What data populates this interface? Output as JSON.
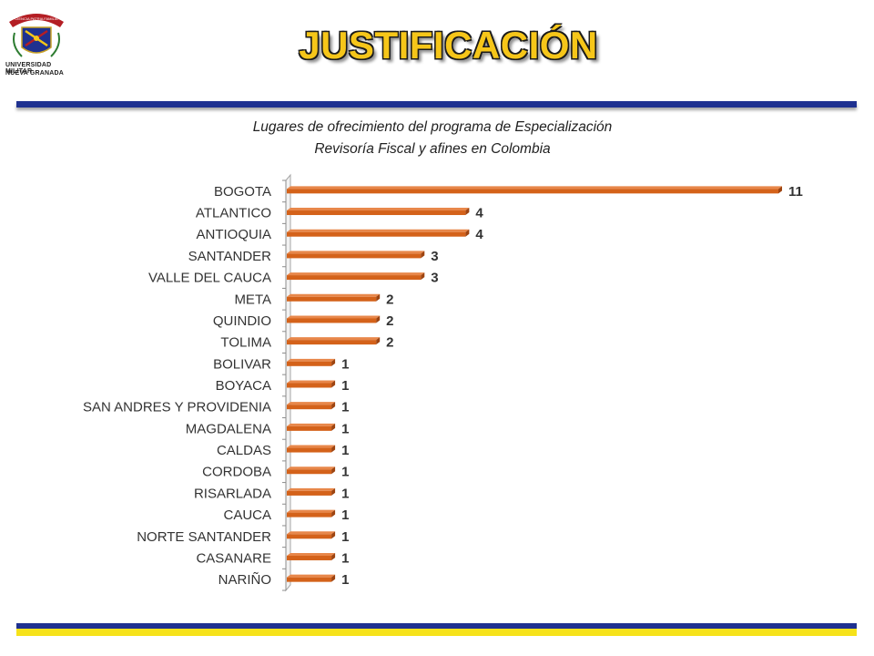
{
  "header": {
    "title": "JUSTIFICACIÓN",
    "logo_line1": "UNIVERSIDAD MILITAR",
    "logo_line2": "NUEVA GRANADA",
    "logo_banner": "CIENCIA PATRIA FAMILIA"
  },
  "colors": {
    "title_fill": "#f6c619",
    "rule_blue": "#1f3190",
    "rule_yellow": "#f6e21a",
    "bar_fill": "#d4621a"
  },
  "chart_data": {
    "type": "bar",
    "orientation": "horizontal",
    "title": "Lugares de ofrecimiento del programa de Especialización",
    "subtitle": "Revisoría Fiscal y afines en Colombia",
    "categories": [
      "BOGOTA",
      "ATLANTICO",
      "ANTIOQUIA",
      "SANTANDER",
      "VALLE DEL CAUCA",
      "META",
      "QUINDIO",
      "TOLIMA",
      "BOLIVAR",
      "BOYACA",
      "SAN ANDRES Y PROVIDENIA",
      "MAGDALENA",
      "CALDAS",
      "CORDOBA",
      "RISARLADA",
      "CAUCA",
      "NORTE SANTANDER",
      "CASANARE",
      "NARIÑO"
    ],
    "values": [
      11,
      4,
      4,
      3,
      3,
      2,
      2,
      2,
      1,
      1,
      1,
      1,
      1,
      1,
      1,
      1,
      1,
      1,
      1
    ],
    "xlim": [
      0,
      11
    ],
    "grid": false,
    "data_labels": true
  }
}
